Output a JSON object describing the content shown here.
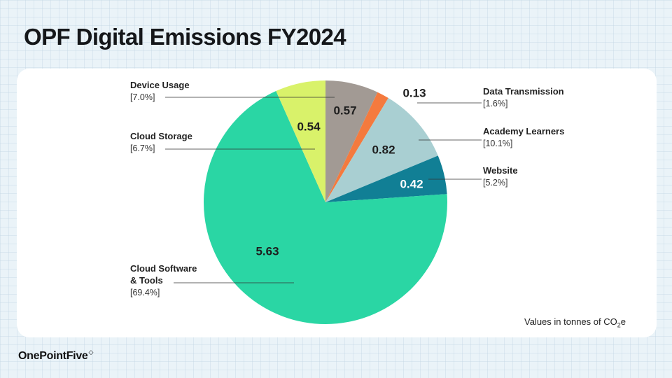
{
  "title": "OPF Digital Emissions FY2024",
  "note": {
    "prefix": "Values in tonnes of CO",
    "sub": "2",
    "suffix": "e"
  },
  "brand": {
    "name": "OnePointFive",
    "mark": "◇"
  },
  "chart_data": {
    "type": "pie",
    "unit": "tonnes CO2e",
    "slices": [
      {
        "category": "Device Usage",
        "name_lines": [
          "Device Usage"
        ],
        "value": 0.57,
        "value_label": "0.57",
        "percent_label": "[7.0%]",
        "color": "#a29a94",
        "label_color": "#1e1e1e"
      },
      {
        "category": "Data Transmission",
        "name_lines": [
          "Data Transmission"
        ],
        "value": 0.13,
        "value_label": "0.13",
        "percent_label": "[1.6%]",
        "color": "#f47a3e",
        "label_color": "#1e1e1e"
      },
      {
        "category": "Academy Learners",
        "name_lines": [
          "Academy Learners"
        ],
        "value": 0.82,
        "value_label": "0.82",
        "percent_label": "[10.1%]",
        "color": "#a9cfd2",
        "label_color": "#1e1e1e"
      },
      {
        "category": "Website",
        "name_lines": [
          "Website"
        ],
        "value": 0.42,
        "value_label": "0.42",
        "percent_label": "[5.2%]",
        "color": "#117f95",
        "label_color": "#ffffff"
      },
      {
        "category": "Cloud Software & Tools",
        "name_lines": [
          "Cloud Software",
          "& Tools"
        ],
        "value": 5.63,
        "value_label": "5.63",
        "percent_label": "[69.4%]",
        "color": "#2ad6a4",
        "label_color": "#1e1e1e"
      },
      {
        "category": "Cloud Storage",
        "name_lines": [
          "Cloud Storage"
        ],
        "value": 0.54,
        "value_label": "0.54",
        "percent_label": "[6.7%]",
        "color": "#d9f26a",
        "label_color": "#1e1e1e"
      }
    ]
  }
}
